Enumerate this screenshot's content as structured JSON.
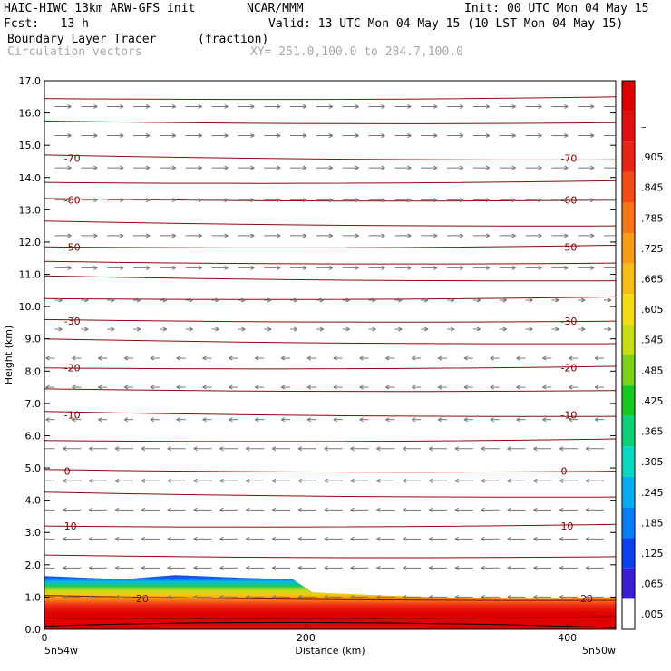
{
  "header": {
    "model": "HAIC-HIWC 13km ARW-GFS init",
    "org": "NCAR/MMM",
    "init": "Init: 00 UTC Mon 04 May 15",
    "fcst": "Fcst:   13 h",
    "valid": "Valid: 13 UTC Mon 04 May 15 (10 LST Mon 04 May 15)",
    "field": "Boundary Layer Tracer",
    "units": "(fraction)",
    "vectors": "Circulation vectors",
    "xy": "XY= 251.0,100.0 to 284.7,100.0"
  },
  "chart_data": {
    "type": "heatmap",
    "title": "Boundary Layer Tracer",
    "xlabel": "Distance (km)",
    "ylabel": "Height (km)",
    "xlim": [
      0,
      437
    ],
    "ylim": [
      0,
      17
    ],
    "x_ticks": [
      "0",
      "200",
      "400"
    ],
    "x_tick_values": [
      0,
      200,
      400
    ],
    "y_ticks": [
      "0.0",
      "1.0",
      "2.0",
      "3.0",
      "4.0",
      "5.0",
      "6.0",
      "7.0",
      "8.0",
      "9.0",
      "10.0",
      "11.0",
      "12.0",
      "13.0",
      "14.0",
      "15.0",
      "16.0",
      "17.0"
    ],
    "x_end_labels": [
      "5n54w",
      "5n50w"
    ],
    "tracer_top": {
      "x": [
        0,
        60,
        100,
        150,
        190,
        205,
        260,
        300,
        350,
        400,
        437
      ],
      "y": [
        1.65,
        1.55,
        1.68,
        1.6,
        1.55,
        1.15,
        1.05,
        1.0,
        0.95,
        0.95,
        1.0
      ]
    },
    "colorbar": {
      "labels": [
        ".005",
        ".065",
        ".125",
        ".185",
        ".245",
        ".305",
        ".365",
        ".425",
        ".485",
        ".545",
        ".605",
        ".665",
        ".725",
        ".785",
        ".845",
        ".905",
        "–"
      ],
      "colors": [
        "#ffffff",
        "#3a1ed2",
        "#0b3ff0",
        "#0a7cf6",
        "#00aef0",
        "#08d8c0",
        "#0ad07a",
        "#18c822",
        "#7ad21c",
        "#c8dc14",
        "#f4dc12",
        "#f8be18",
        "#f89c16",
        "#f87618",
        "#f44c16",
        "#ea2414",
        "#e01010",
        "#e00000"
      ]
    },
    "isotherms": {
      "unit": "°C",
      "labeled": [
        {
          "label": "-70",
          "y": 14.6
        },
        {
          "label": "-60",
          "y": 13.3
        },
        {
          "label": "-50",
          "y": 11.85
        },
        {
          "label": "-30",
          "y": 9.55
        },
        {
          "label": "-20",
          "y": 8.1
        },
        {
          "label": "-10",
          "y": 6.65
        },
        {
          "label": "0",
          "y": 4.9
        },
        {
          "label": "10",
          "y": 3.2
        },
        {
          "label": "20",
          "y": 0.95
        }
      ],
      "all_levels_km": [
        16.45,
        15.7,
        14.6,
        13.85,
        13.3,
        12.55,
        11.85,
        11.35,
        10.85,
        10.25,
        9.55,
        8.9,
        8.1,
        7.4,
        6.65,
        5.85,
        4.9,
        4.15,
        3.2,
        2.25,
        0.95,
        0.35
      ]
    },
    "vectors": {
      "description_rows_km": [
        16.2,
        15.3,
        14.3,
        13.3,
        12.2,
        11.2,
        10.2,
        9.3,
        8.4,
        7.5,
        6.5,
        5.6,
        4.6,
        3.7,
        2.8,
        1.9,
        1.0
      ]
    }
  }
}
